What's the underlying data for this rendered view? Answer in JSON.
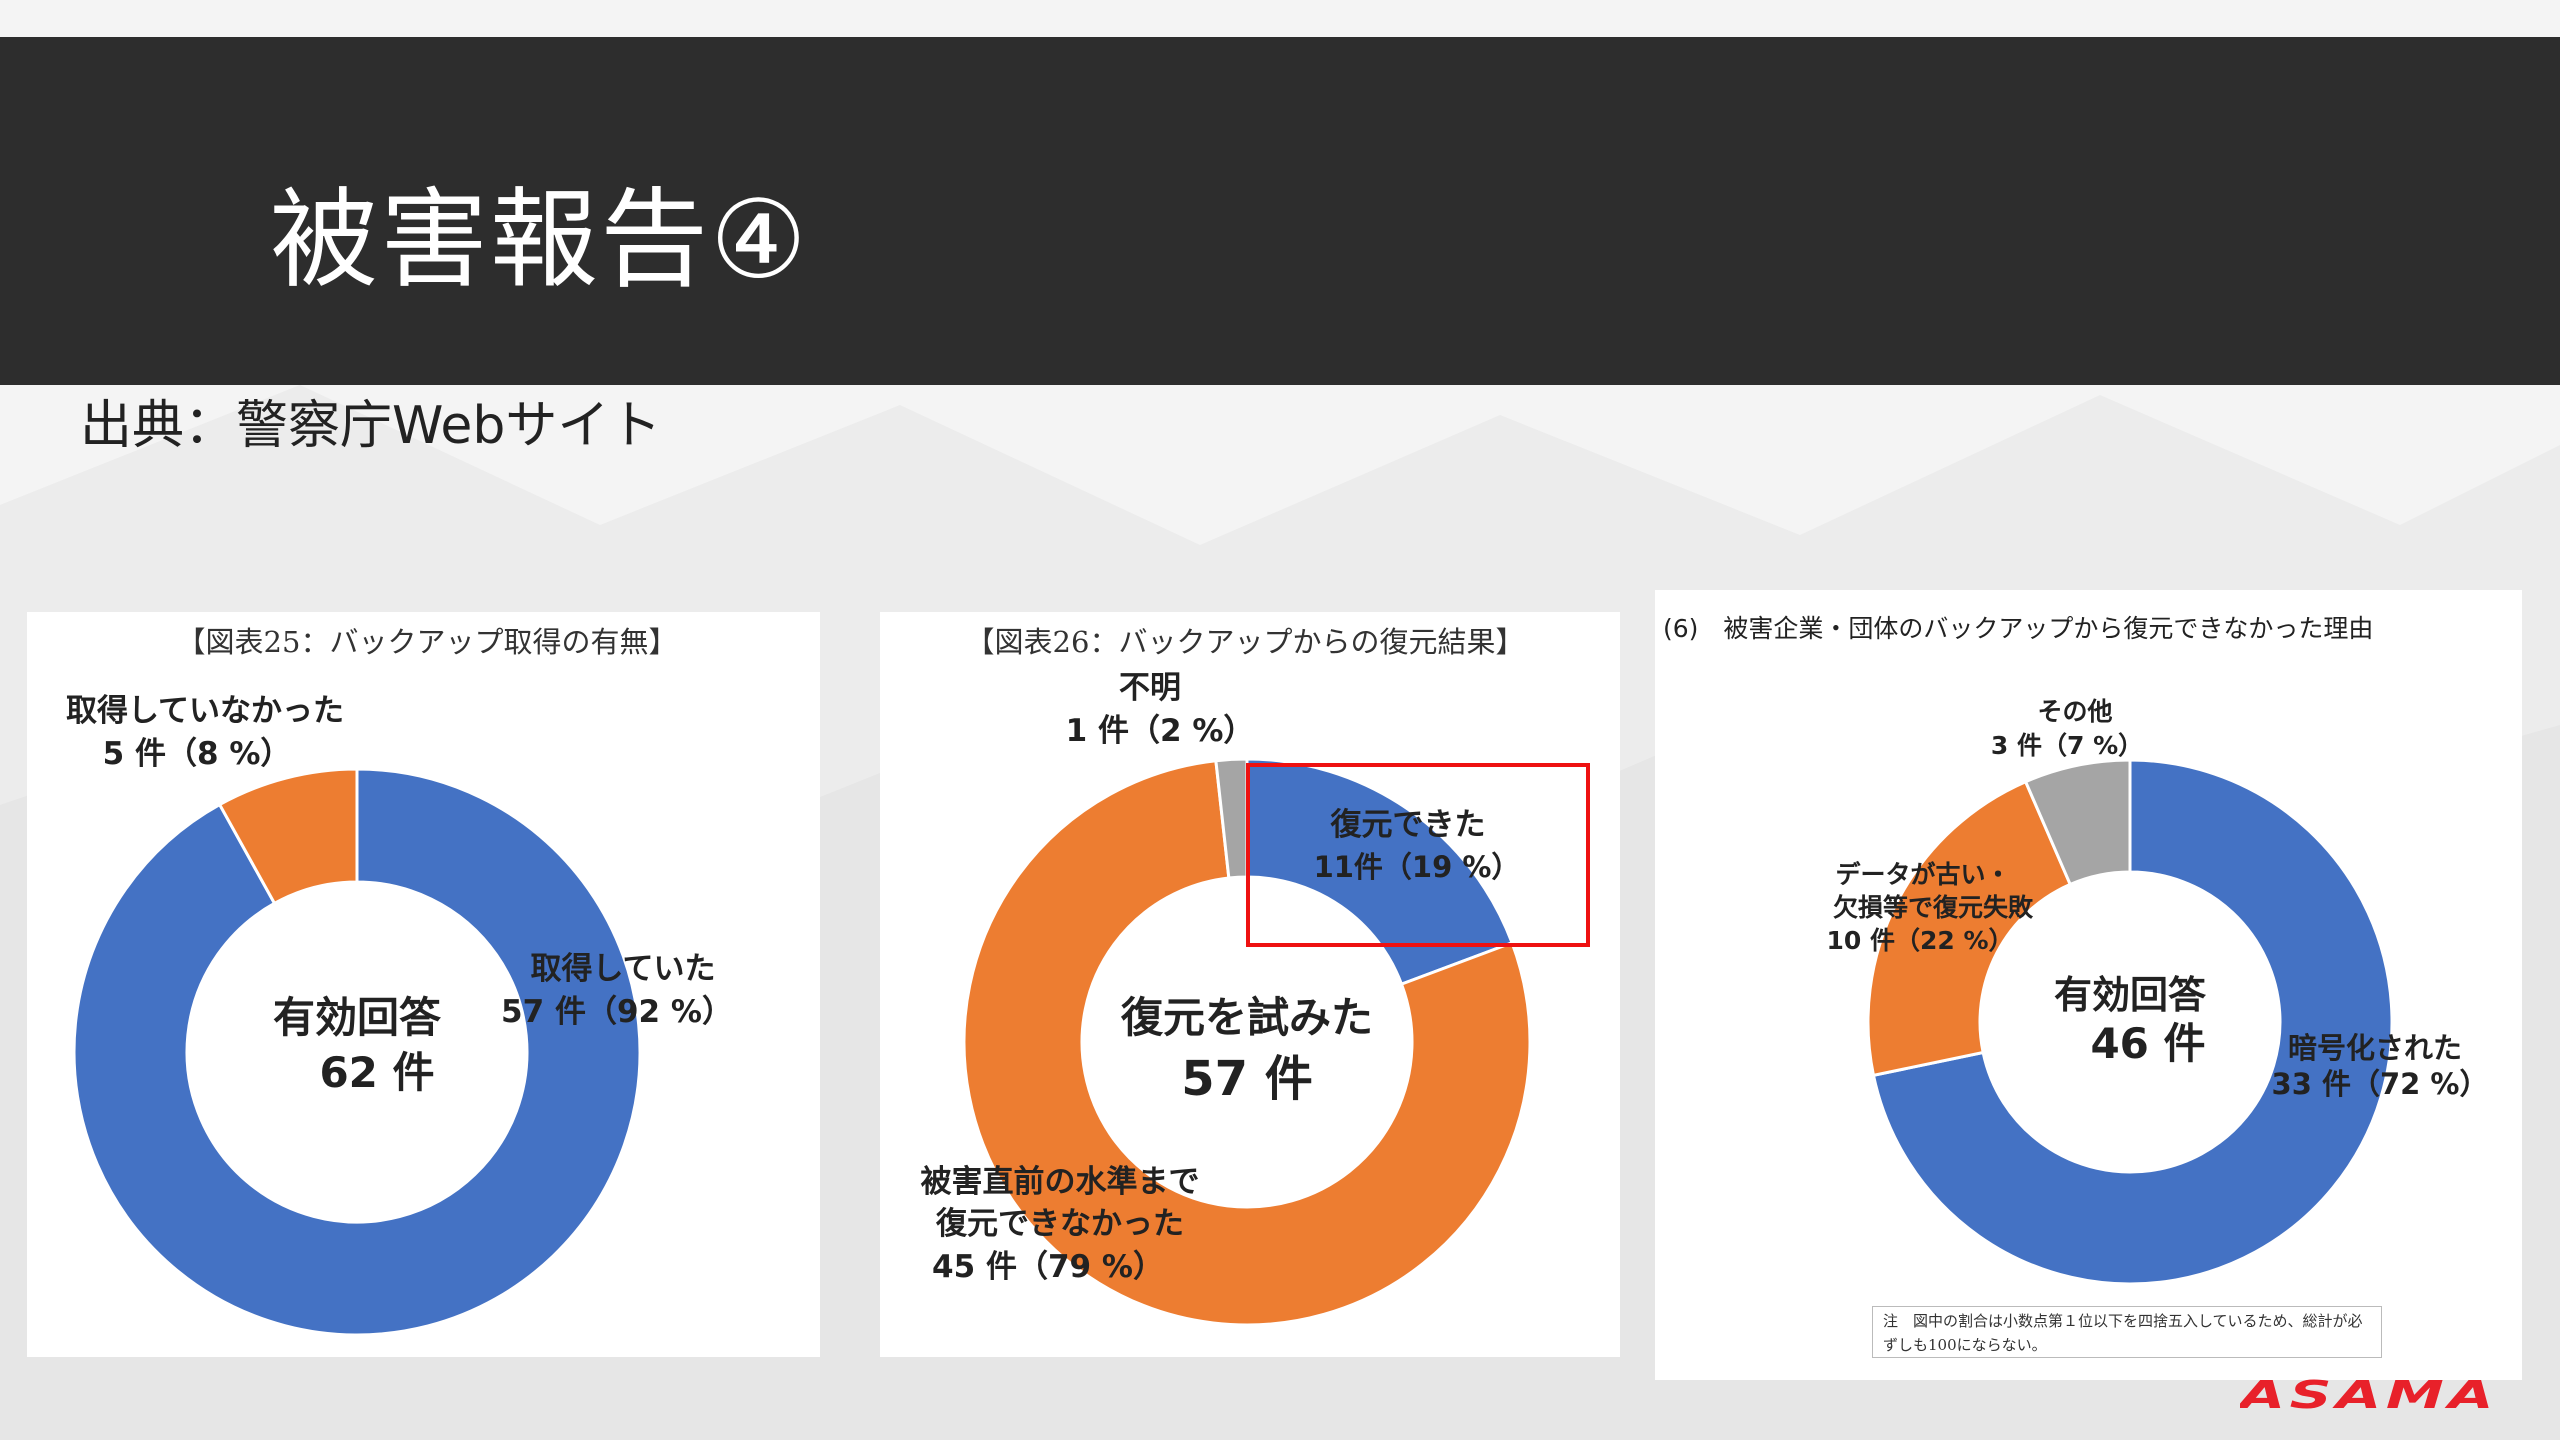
{
  "header": {
    "title": "被害報告④"
  },
  "source": {
    "text": "出典：警察庁Webサイト"
  },
  "chart_data": [
    {
      "type": "pie",
      "title": "【図表25：バックアップ取得の有無】",
      "center": {
        "line1": "有効回答",
        "line2": "62 件"
      },
      "slices": [
        {
          "label": "取得していた",
          "value_text": "57 件（92 %）",
          "value": 57,
          "percent": 92,
          "color": "#4472c4"
        },
        {
          "label": "取得していなかった",
          "value_text": "5 件（8 %）",
          "value": 5,
          "percent": 8,
          "color": "#ed7d31"
        }
      ]
    },
    {
      "type": "pie",
      "title": "【図表26：バックアップからの復元結果】",
      "center": {
        "line1": "復元を試みた",
        "line2": "57 件"
      },
      "slices": [
        {
          "label": "復元できた",
          "value_text": "11件（19 %）",
          "value": 11,
          "percent": 19,
          "color": "#4472c4"
        },
        {
          "label": "被害直前の水準まで復元できなかった",
          "label_lines": [
            "被害直前の水準まで",
            "復元できなかった"
          ],
          "value_text": "45 件（79 %）",
          "value": 45,
          "percent": 79,
          "color": "#ed7d31"
        },
        {
          "label": "不明",
          "value_text": "1 件（2 %）",
          "value": 1,
          "percent": 2,
          "color": "#a5a5a5"
        }
      ]
    },
    {
      "type": "pie",
      "title": "(6)　被害企業・団体のバックアップから復元できなかった理由",
      "center": {
        "line1": "有効回答",
        "line2": "46 件"
      },
      "slices": [
        {
          "label": "暗号化された",
          "value_text": "33 件（72 %）",
          "value": 33,
          "percent": 72,
          "color": "#4472c4"
        },
        {
          "label": "データが古い・欠損等で復元失敗",
          "label_lines": [
            "データが古い・",
            "欠損等で復元失敗"
          ],
          "value_text": "10 件（22 %）",
          "value": 10,
          "percent": 22,
          "color": "#ed7d31"
        },
        {
          "label": "その他",
          "value_text": "3 件（7 %）",
          "value": 3,
          "percent": 7,
          "color": "#a5a5a5"
        }
      ],
      "note": "注　図中の割合は小数点第１位以下を四捨五入しているため、総計が必ずしも100にならない。"
    }
  ],
  "logo": {
    "text": "ASAMA",
    "color": "#e8212a"
  }
}
